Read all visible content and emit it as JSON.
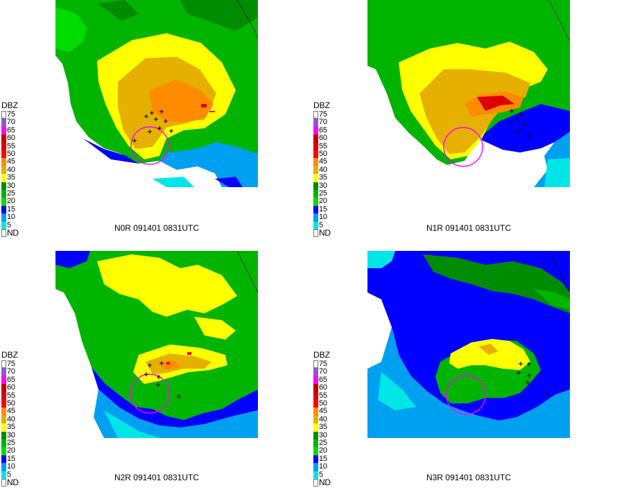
{
  "legend": {
    "title": "DBZ",
    "levels": [
      {
        "label": "75",
        "color": "#ffffff"
      },
      {
        "label": "70",
        "color": "#9a55c8"
      },
      {
        "label": "65",
        "color": "#ff00ff"
      },
      {
        "label": "60",
        "color": "#c00000"
      },
      {
        "label": "55",
        "color": "#dd0000"
      },
      {
        "label": "50",
        "color": "#ff0000"
      },
      {
        "label": "45",
        "color": "#ff8c00"
      },
      {
        "label": "40",
        "color": "#e6b000"
      },
      {
        "label": "35",
        "color": "#ffff00"
      },
      {
        "label": "30",
        "color": "#008c00"
      },
      {
        "label": "25",
        "color": "#00b400"
      },
      {
        "label": "20",
        "color": "#00dc00"
      },
      {
        "label": "15",
        "color": "#0000ff"
      },
      {
        "label": "10",
        "color": "#00a0f0"
      },
      {
        "label": "5",
        "color": "#00e6e6"
      },
      {
        "label": "ND",
        "color": "#ffffff"
      }
    ]
  },
  "panels": [
    {
      "caption": "N0R 091401 0831UTC",
      "map_name": "radar-reflectivity-n0r"
    },
    {
      "caption": "N1R 091401 0831UTC",
      "map_name": "radar-reflectivity-n1r"
    },
    {
      "caption": "N2R 091401 0831UTC",
      "map_name": "radar-reflectivity-n2r"
    },
    {
      "caption": "N3R 091401 0831UTC",
      "map_name": "radar-reflectivity-n3r"
    }
  ]
}
